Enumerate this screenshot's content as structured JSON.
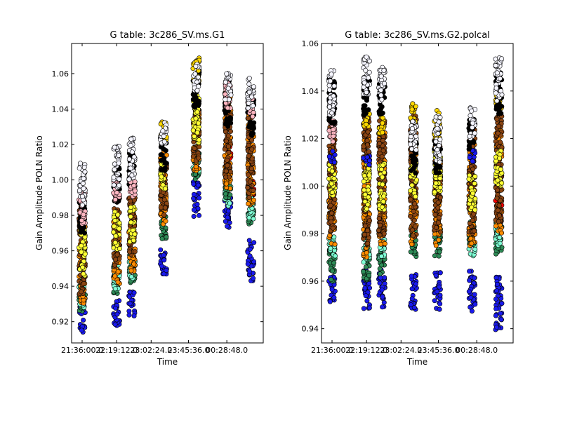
{
  "chart_data": [
    {
      "type": "scatter",
      "title": "G table: 3c286_SV.ms.G1",
      "xlabel": "Time",
      "ylabel": "Gain Amplitude POLN Ratio",
      "ylim": [
        0.908,
        1.077
      ],
      "yticks": [
        0.92,
        0.94,
        0.96,
        0.98,
        1.0,
        1.02,
        1.04,
        1.06
      ],
      "ytick_labels": [
        "0.92",
        "0.94",
        "0.96",
        "0.98",
        "1.00",
        "1.02",
        "1.04",
        "1.06"
      ],
      "xticks": [
        "21:36:00.0",
        "22:19:12.0",
        "23:02:24.0",
        "23:45:36.0",
        "00:28:48.0"
      ],
      "grid": false,
      "scans": [
        {
          "time_fraction": 0.055,
          "bands": [
            {
              "color": "#1a1aee",
              "min": 0.914,
              "max": 0.935
            },
            {
              "color": "#2e8b57",
              "min": 0.925,
              "max": 0.945
            },
            {
              "color": "#7fffd4",
              "min": 0.928,
              "max": 0.945
            },
            {
              "color": "#ff8c00",
              "min": 0.93,
              "max": 0.975
            },
            {
              "color": "#8b4513",
              "min": 0.935,
              "max": 0.985
            },
            {
              "color": "#ffff33",
              "min": 0.945,
              "max": 0.972
            },
            {
              "color": "#000000",
              "min": 0.97,
              "max": 0.99
            },
            {
              "color": "#ffb6c1",
              "min": 0.975,
              "max": 0.995
            },
            {
              "color": "#f5f5ff",
              "min": 0.985,
              "max": 1.01
            }
          ]
        },
        {
          "time_fraction": 0.235,
          "bands": [
            {
              "color": "#1a1aee",
              "min": 0.916,
              "max": 0.932
            },
            {
              "color": "#2e8b57",
              "min": 0.935,
              "max": 0.95
            },
            {
              "color": "#7fffd4",
              "min": 0.937,
              "max": 0.952
            },
            {
              "color": "#ff8c00",
              "min": 0.94,
              "max": 0.978
            },
            {
              "color": "#8b4513",
              "min": 0.95,
              "max": 0.985
            },
            {
              "color": "#ffff33",
              "min": 0.96,
              "max": 0.982
            },
            {
              "color": "#000000",
              "min": 0.985,
              "max": 1.008
            },
            {
              "color": "#ffb6c1",
              "min": 0.988,
              "max": 1.0
            },
            {
              "color": "#f5f5ff",
              "min": 0.995,
              "max": 1.019
            }
          ]
        },
        {
          "time_fraction": 0.315,
          "bands": [
            {
              "color": "#1a1aee",
              "min": 0.923,
              "max": 0.937
            },
            {
              "color": "#2e8b57",
              "min": 0.942,
              "max": 0.958
            },
            {
              "color": "#7fffd4",
              "min": 0.944,
              "max": 0.956
            },
            {
              "color": "#ff8c00",
              "min": 0.945,
              "max": 0.982
            },
            {
              "color": "#8b4513",
              "min": 0.955,
              "max": 0.99
            },
            {
              "color": "#ffff33",
              "min": 0.965,
              "max": 0.985
            },
            {
              "color": "#000000",
              "min": 0.995,
              "max": 1.015
            },
            {
              "color": "#ffb6c1",
              "min": 0.99,
              "max": 1.0
            },
            {
              "color": "#f5f5ff",
              "min": 1.0,
              "max": 1.024
            }
          ]
        },
        {
          "time_fraction": 0.48,
          "bands": [
            {
              "color": "#1a1aee",
              "min": 0.946,
              "max": 0.962
            },
            {
              "color": "#2e8b57",
              "min": 0.965,
              "max": 0.98
            },
            {
              "color": "#ff8c00",
              "min": 0.975,
              "max": 1.018
            },
            {
              "color": "#8b4513",
              "min": 0.98,
              "max": 1.01
            },
            {
              "color": "#ffff33",
              "min": 0.995,
              "max": 1.01
            },
            {
              "color": "#000000",
              "min": 1.005,
              "max": 1.025
            },
            {
              "color": "#ffd700",
              "min": 1.022,
              "max": 1.034
            },
            {
              "color": "#f5f5ff",
              "min": 1.02,
              "max": 1.033
            }
          ]
        },
        {
          "time_fraction": 0.65,
          "bands": [
            {
              "color": "#1a1aee",
              "min": 0.979,
              "max": 0.999
            },
            {
              "color": "#2e8b57",
              "min": 1.0,
              "max": 1.015
            },
            {
              "color": "#7fffd4",
              "min": 1.005,
              "max": 1.012
            },
            {
              "color": "#ff8c00",
              "min": 1.005,
              "max": 1.05
            },
            {
              "color": "#8b4513",
              "min": 1.01,
              "max": 1.045
            },
            {
              "color": "#ffff33",
              "min": 1.02,
              "max": 1.048
            },
            {
              "color": "#000000",
              "min": 1.04,
              "max": 1.062
            },
            {
              "color": "#ffd700",
              "min": 1.055,
              "max": 1.069
            },
            {
              "color": "#f5f5ff",
              "min": 1.05,
              "max": 1.066
            }
          ]
        },
        {
          "time_fraction": 0.815,
          "bands": [
            {
              "color": "#1a1aee",
              "min": 0.972,
              "max": 0.99
            },
            {
              "color": "#7fffd4",
              "min": 0.985,
              "max": 1.0
            },
            {
              "color": "#2e8b57",
              "min": 0.99,
              "max": 1.008
            },
            {
              "color": "#ff0000",
              "min": 1.005,
              "max": 1.02
            },
            {
              "color": "#ff8c00",
              "min": 0.995,
              "max": 1.05
            },
            {
              "color": "#8b4513",
              "min": 1.0,
              "max": 1.045
            },
            {
              "color": "#000000",
              "min": 1.03,
              "max": 1.058
            },
            {
              "color": "#ffb6c1",
              "min": 1.04,
              "max": 1.055
            },
            {
              "color": "#f5f5ff",
              "min": 1.045,
              "max": 1.061
            }
          ]
        },
        {
          "time_fraction": 0.935,
          "bands": [
            {
              "color": "#1a1aee",
              "min": 0.943,
              "max": 0.966
            },
            {
              "color": "#2e8b57",
              "min": 0.975,
              "max": 0.995
            },
            {
              "color": "#7fffd4",
              "min": 0.978,
              "max": 0.99
            },
            {
              "color": "#ff0000",
              "min": 0.99,
              "max": 1.0
            },
            {
              "color": "#ff8c00",
              "min": 0.985,
              "max": 1.04
            },
            {
              "color": "#8b4513",
              "min": 0.99,
              "max": 1.035
            },
            {
              "color": "#000000",
              "min": 1.025,
              "max": 1.05
            },
            {
              "color": "#ffb6c1",
              "min": 1.035,
              "max": 1.05
            },
            {
              "color": "#f5f5ff",
              "min": 1.04,
              "max": 1.058
            }
          ]
        }
      ]
    },
    {
      "type": "scatter",
      "title": "G table: 3c286_SV.ms.G2.polcal",
      "xlabel": "Time",
      "ylabel": "Gain Amplitude POLN Ratio",
      "ylim": [
        0.934,
        1.06
      ],
      "yticks": [
        0.94,
        0.96,
        0.98,
        1.0,
        1.02,
        1.04,
        1.06
      ],
      "ytick_labels": [
        "0.94",
        "0.96",
        "0.98",
        "1.00",
        "1.02",
        "1.04",
        "1.06"
      ],
      "xticks": [
        "21:36:00.0",
        "22:19:12.0",
        "23:02:24.0",
        "23:45:36.0",
        "00:28:48.0"
      ],
      "grid": false,
      "scans": [
        {
          "time_fraction": 0.055,
          "bands": [
            {
              "color": "#1a1aee",
              "min": 0.951,
              "max": 0.962
            },
            {
              "color": "#2e8b57",
              "min": 0.96,
              "max": 0.975
            },
            {
              "color": "#7fffd4",
              "min": 0.97,
              "max": 0.98
            },
            {
              "color": "#ff8c00",
              "min": 0.975,
              "max": 1.012
            },
            {
              "color": "#8b4513",
              "min": 0.98,
              "max": 1.028
            },
            {
              "color": "#ffff33",
              "min": 0.995,
              "max": 1.01
            },
            {
              "color": "#1a1aee",
              "min": 1.01,
              "max": 1.015
            },
            {
              "color": "#ffb6c1",
              "min": 1.018,
              "max": 1.028
            },
            {
              "color": "#000000",
              "min": 1.025,
              "max": 1.045
            },
            {
              "color": "#f5f5ff",
              "min": 1.03,
              "max": 1.049
            }
          ]
        },
        {
          "time_fraction": 0.235,
          "bands": [
            {
              "color": "#1a1aee",
              "min": 0.948,
              "max": 0.965
            },
            {
              "color": "#2e8b57",
              "min": 0.96,
              "max": 0.975
            },
            {
              "color": "#7fffd4",
              "min": 0.968,
              "max": 0.98
            },
            {
              "color": "#ff8c00",
              "min": 0.97,
              "max": 1.025
            },
            {
              "color": "#8b4513",
              "min": 0.975,
              "max": 1.03
            },
            {
              "color": "#ffff33",
              "min": 0.99,
              "max": 1.012
            },
            {
              "color": "#1a1aee",
              "min": 1.008,
              "max": 1.013
            },
            {
              "color": "#ffd700",
              "min": 1.025,
              "max": 1.032
            },
            {
              "color": "#000000",
              "min": 1.03,
              "max": 1.045
            },
            {
              "color": "#f5f5ff",
              "min": 1.038,
              "max": 1.055
            }
          ]
        },
        {
          "time_fraction": 0.315,
          "bands": [
            {
              "color": "#1a1aee",
              "min": 0.949,
              "max": 0.965
            },
            {
              "color": "#2e8b57",
              "min": 0.962,
              "max": 0.975
            },
            {
              "color": "#7fffd4",
              "min": 0.97,
              "max": 0.978
            },
            {
              "color": "#ff8c00",
              "min": 0.975,
              "max": 1.025
            },
            {
              "color": "#8b4513",
              "min": 0.978,
              "max": 1.028
            },
            {
              "color": "#ffff33",
              "min": 0.99,
              "max": 1.01
            },
            {
              "color": "#ffd700",
              "min": 1.022,
              "max": 1.03
            },
            {
              "color": "#000000",
              "min": 1.03,
              "max": 1.045
            },
            {
              "color": "#f5f5ff",
              "min": 1.035,
              "max": 1.05
            }
          ]
        },
        {
          "time_fraction": 0.48,
          "bands": [
            {
              "color": "#1a1aee",
              "min": 0.948,
              "max": 0.963
            },
            {
              "color": "#2e8b57",
              "min": 0.97,
              "max": 0.982
            },
            {
              "color": "#ff8c00",
              "min": 0.975,
              "max": 1.025
            },
            {
              "color": "#8b4513",
              "min": 0.978,
              "max": 1.03
            },
            {
              "color": "#ffff33",
              "min": 0.995,
              "max": 1.01
            },
            {
              "color": "#ffd700",
              "min": 1.025,
              "max": 1.035
            },
            {
              "color": "#000000",
              "min": 1.005,
              "max": 1.02
            },
            {
              "color": "#f5f5ff",
              "min": 1.015,
              "max": 1.028
            }
          ]
        },
        {
          "time_fraction": 0.605,
          "bands": [
            {
              "color": "#1a1aee",
              "min": 0.948,
              "max": 0.964
            },
            {
              "color": "#2e8b57",
              "min": 0.97,
              "max": 0.985
            },
            {
              "color": "#ff8c00",
              "min": 0.975,
              "max": 1.02
            },
            {
              "color": "#8b4513",
              "min": 0.98,
              "max": 1.025
            },
            {
              "color": "#ffff33",
              "min": 0.995,
              "max": 1.015
            },
            {
              "color": "#ffd700",
              "min": 1.02,
              "max": 1.032
            },
            {
              "color": "#000000",
              "min": 1.005,
              "max": 1.02
            },
            {
              "color": "#f5f5ff",
              "min": 1.01,
              "max": 1.03
            }
          ]
        },
        {
          "time_fraction": 0.785,
          "bands": [
            {
              "color": "#1a1aee",
              "min": 0.947,
              "max": 0.965
            },
            {
              "color": "#7fffd4",
              "min": 0.97,
              "max": 0.982
            },
            {
              "color": "#2e8b57",
              "min": 0.975,
              "max": 0.985
            },
            {
              "color": "#ff8c00",
              "min": 0.975,
              "max": 1.02
            },
            {
              "color": "#8b4513",
              "min": 0.98,
              "max": 1.025
            },
            {
              "color": "#ffff33",
              "min": 0.99,
              "max": 1.005
            },
            {
              "color": "#1a1aee",
              "min": 1.01,
              "max": 1.015
            },
            {
              "color": "#000000",
              "min": 1.015,
              "max": 1.028
            },
            {
              "color": "#f5f5ff",
              "min": 1.02,
              "max": 1.033
            }
          ]
        },
        {
          "time_fraction": 0.925,
          "bands": [
            {
              "color": "#1a1aee",
              "min": 0.939,
              "max": 0.962
            },
            {
              "color": "#2e8b57",
              "min": 0.97,
              "max": 0.985
            },
            {
              "color": "#7fffd4",
              "min": 0.975,
              "max": 0.985
            },
            {
              "color": "#ff0000",
              "min": 0.985,
              "max": 0.995
            },
            {
              "color": "#ff8c00",
              "min": 0.98,
              "max": 1.025
            },
            {
              "color": "#8b4513",
              "min": 0.985,
              "max": 1.03
            },
            {
              "color": "#ffff33",
              "min": 1.0,
              "max": 1.015
            },
            {
              "color": "#ffd700",
              "min": 1.03,
              "max": 1.04
            },
            {
              "color": "#000000",
              "min": 1.03,
              "max": 1.048
            },
            {
              "color": "#f5f5ff",
              "min": 1.035,
              "max": 1.054
            }
          ]
        }
      ]
    }
  ]
}
